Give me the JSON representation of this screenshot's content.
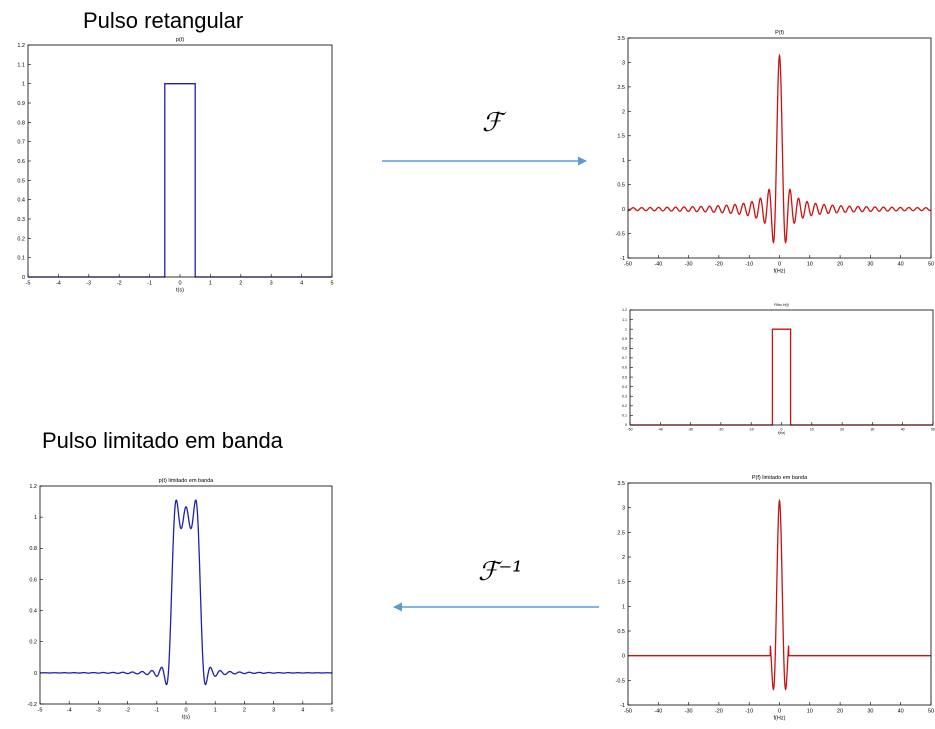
{
  "headings": {
    "top": "Pulso retangular",
    "bottom": "Pulso limitado em banda"
  },
  "operators": {
    "forward": "ℱ",
    "inverse": "ℱ⁻¹"
  },
  "colors": {
    "blue": "#1f1fb4",
    "red": "#cc1111",
    "arrow": "#5b9bd5",
    "axis": "#000000"
  },
  "chart_data": [
    {
      "id": "p",
      "type": "line",
      "title": "p(t)",
      "xlabel": "t(s)",
      "ylabel": "",
      "xlim": [
        -5,
        5
      ],
      "ylim": [
        0,
        1.2
      ],
      "xticks": [
        -5,
        -4,
        -3,
        -2,
        -1,
        0,
        1,
        2,
        3,
        4,
        5
      ],
      "yticks": [
        0,
        0.1,
        0.2,
        0.3,
        0.4,
        0.5,
        0.6,
        0.7,
        0.8,
        0.9,
        1,
        1.1,
        1.2
      ],
      "series": [
        {
          "shape": "rect",
          "from": -0.5,
          "to": 0.5,
          "amplitude": 1
        }
      ],
      "color": "#1f1fb4"
    },
    {
      "id": "P",
      "type": "line",
      "title": "P(f)",
      "xlabel": "f(Hz)",
      "ylabel": "",
      "xlim": [
        -50,
        50
      ],
      "ylim": [
        -1,
        3.5
      ],
      "xticks": [
        -50,
        -40,
        -30,
        -20,
        -10,
        0,
        10,
        20,
        30,
        40,
        50
      ],
      "yticks": [
        -1,
        -0.5,
        0,
        0.5,
        1,
        1.5,
        2,
        2.5,
        3,
        3.5
      ],
      "series": [
        {
          "shape": "sinc",
          "amplitude": 3.14,
          "zero_spacing": 1,
          "display_scale": 1.4
        }
      ],
      "color": "#cc1111"
    },
    {
      "id": "H",
      "type": "line",
      "title": "Filtro H(f)",
      "xlabel": "f(Hz)",
      "ylabel": "",
      "xlim": [
        -50,
        50
      ],
      "ylim": [
        0,
        1.2
      ],
      "xticks": [
        -50,
        -40,
        -30,
        -20,
        -10,
        0,
        10,
        20,
        30,
        40,
        50
      ],
      "yticks": [
        0,
        0.1,
        0.2,
        0.3,
        0.4,
        0.5,
        0.6,
        0.7,
        0.8,
        0.9,
        1,
        1.1,
        1.2
      ],
      "series": [
        {
          "shape": "rect",
          "from": -3,
          "to": 3,
          "amplitude": 1
        }
      ],
      "color": "#cc1111"
    },
    {
      "id": "Pf",
      "type": "line",
      "title": "P(f) limitado em banda",
      "xlabel": "f(Hz)",
      "ylabel": "",
      "xlim": [
        -50,
        50
      ],
      "ylim": [
        -1,
        3.5
      ],
      "xticks": [
        -50,
        -40,
        -30,
        -20,
        -10,
        0,
        10,
        20,
        30,
        40,
        50
      ],
      "yticks": [
        -1,
        -0.5,
        0,
        0.5,
        1,
        1.5,
        2,
        2.5,
        3,
        3.5
      ],
      "series": [
        {
          "shape": "sinc",
          "amplitude": 3.14,
          "zero_spacing": 1,
          "display_scale": 1.4,
          "band": 3
        }
      ],
      "color": "#cc1111"
    },
    {
      "id": "pt",
      "type": "line",
      "title": "p(t) limitado em banda",
      "xlabel": "t(s)",
      "ylabel": "",
      "xlim": [
        -5,
        5
      ],
      "ylim": [
        -0.2,
        1.2
      ],
      "xticks": [
        -5,
        -4,
        -3,
        -2,
        -1,
        0,
        1,
        2,
        3,
        4,
        5
      ],
      "yticks": [
        -0.2,
        0,
        0.2,
        0.4,
        0.6,
        0.8,
        1,
        1.2
      ],
      "series": [
        {
          "shape": "bandlimited_rect",
          "width": 1,
          "band": 3
        }
      ],
      "color": "#1f1fb4"
    }
  ]
}
